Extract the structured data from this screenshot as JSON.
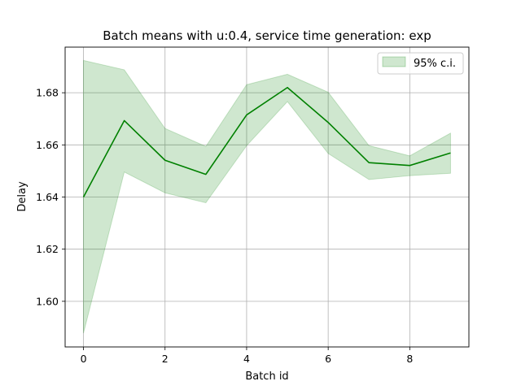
{
  "chart_data": {
    "type": "line",
    "title": "Batch means with u:0.4, service time generation: exp",
    "xlabel": "Batch id",
    "ylabel": "Delay",
    "x": [
      0,
      1,
      2,
      3,
      4,
      5,
      6,
      7,
      8,
      9
    ],
    "series": [
      {
        "name": "",
        "color": "#008000",
        "values": [
          1.64,
          1.6693,
          1.6541,
          1.6487,
          1.6715,
          1.682,
          1.6686,
          1.6532,
          1.6521,
          1.6569
        ]
      }
    ],
    "confidence_interval": {
      "name": "95% c.i.",
      "color": "#008000",
      "lower": [
        1.5878,
        1.6496,
        1.6416,
        1.6378,
        1.6597,
        1.6766,
        1.6567,
        1.6467,
        1.6482,
        1.6491
      ],
      "upper": [
        1.6924,
        1.6888,
        1.6663,
        1.6594,
        1.6831,
        1.6871,
        1.6802,
        1.6597,
        1.6558,
        1.6645
      ]
    },
    "xlim": [
      -0.45,
      9.45
    ],
    "ylim": [
      1.5825,
      1.6975
    ],
    "xticks": [
      0,
      2,
      4,
      6,
      8
    ],
    "yticks": [
      1.6,
      1.62,
      1.64,
      1.66,
      1.68
    ],
    "xtick_labels": [
      "0",
      "2",
      "4",
      "6",
      "8"
    ],
    "ytick_labels": [
      "1.60",
      "1.62",
      "1.64",
      "1.66",
      "1.68"
    ],
    "grid": true,
    "legend_position": "upper-right"
  }
}
